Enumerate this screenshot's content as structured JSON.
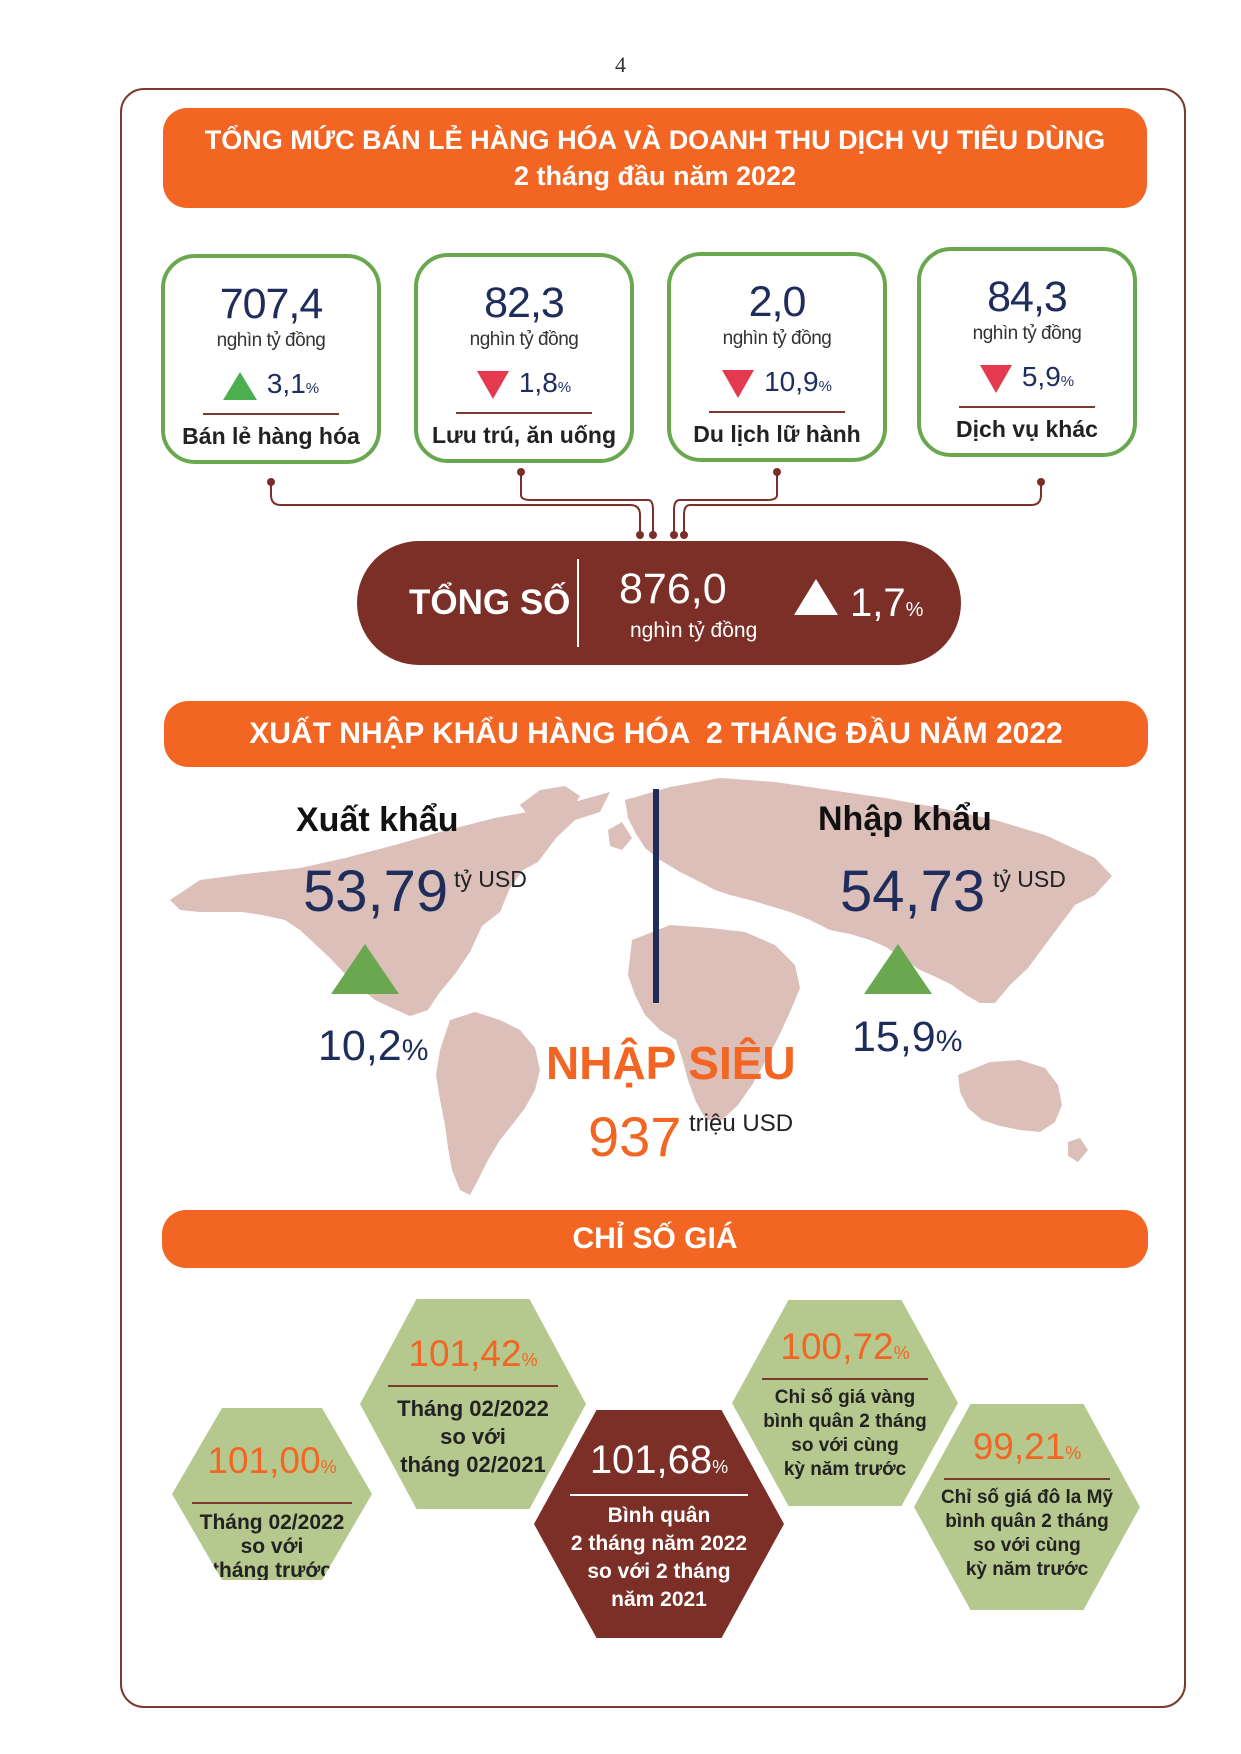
{
  "page_number": "4",
  "retail": {
    "title_line1": "TỔNG MỨC BÁN LẺ HÀNG HÓA VÀ DOANH THU DỊCH VỤ TIÊU DÙNG",
    "title_line2": "2 tháng đầu năm 2022",
    "cards": [
      {
        "value": "707,4",
        "unit": "nghìn tỷ đồng",
        "change": "3,1",
        "pct": "%",
        "direction": "up",
        "label": "Bán lẻ hàng hóa"
      },
      {
        "value": "82,3",
        "unit": "nghìn tỷ đồng",
        "change": "1,8",
        "pct": "%",
        "direction": "down",
        "label": "Lưu trú, ăn uống"
      },
      {
        "value": "2,0",
        "unit": "nghìn tỷ đồng",
        "change": "10,9",
        "pct": "%",
        "direction": "down",
        "label": "Du lịch lữ hành"
      },
      {
        "value": "84,3",
        "unit": "nghìn tỷ đồng",
        "change": "5,9",
        "pct": "%",
        "direction": "down",
        "label": "Dịch vụ khác"
      }
    ],
    "total": {
      "label": "TỔNG SỐ",
      "value": "876,0",
      "unit": "nghìn tỷ đồng",
      "change": "1,7",
      "pct": "%",
      "direction": "up"
    }
  },
  "trade": {
    "title": "XUẤT NHẬP KHẨU HÀNG HÓA  2 THÁNG ĐẦU NĂM 2022",
    "export": {
      "label": "Xuất khẩu",
      "value": "53,79",
      "unit": "tỷ USD",
      "change": "10,2",
      "pct": "%",
      "direction": "up"
    },
    "import": {
      "label": "Nhập khẩu",
      "value": "54,73",
      "unit": "tỷ USD",
      "change": "15,9",
      "pct": "%",
      "direction": "up"
    },
    "deficit": {
      "label": "NHẬP SIÊU",
      "value": "937",
      "unit": "triệu USD"
    }
  },
  "prices": {
    "title": "CHỈ SỐ GIÁ",
    "items": [
      {
        "value": "101,00",
        "pct": "%",
        "line1": "Tháng 02/2022",
        "line2": "so với",
        "line3": "tháng trước"
      },
      {
        "value": "101,42",
        "pct": "%",
        "line1": "Tháng 02/2022",
        "line2": "so với",
        "line3": "tháng 02/2021"
      },
      {
        "value": "101,68",
        "pct": "%",
        "line1": "Bình quân",
        "line2": "2 tháng năm 2022",
        "line3": "so với 2 tháng",
        "line4": "năm 2021"
      },
      {
        "value": "100,72",
        "pct": "%",
        "line1": "Chỉ số giá vàng",
        "line2": "bình quân 2 tháng",
        "line3": "so với cùng",
        "line4": "kỳ năm trước"
      },
      {
        "value": "99,21",
        "pct": "%",
        "line1": "Chỉ số giá đô la Mỹ",
        "line2": "bình quân 2 tháng",
        "line3": "so với cùng",
        "line4": "kỳ năm trước"
      }
    ]
  },
  "colors": {
    "orange": "#f26522",
    "brown": "#7b2f27",
    "green": "#6aa84f",
    "hex_green": "#b5c98e",
    "navy": "#1f2d5c",
    "map": "#dbbfb8",
    "red_down": "#e53950"
  }
}
